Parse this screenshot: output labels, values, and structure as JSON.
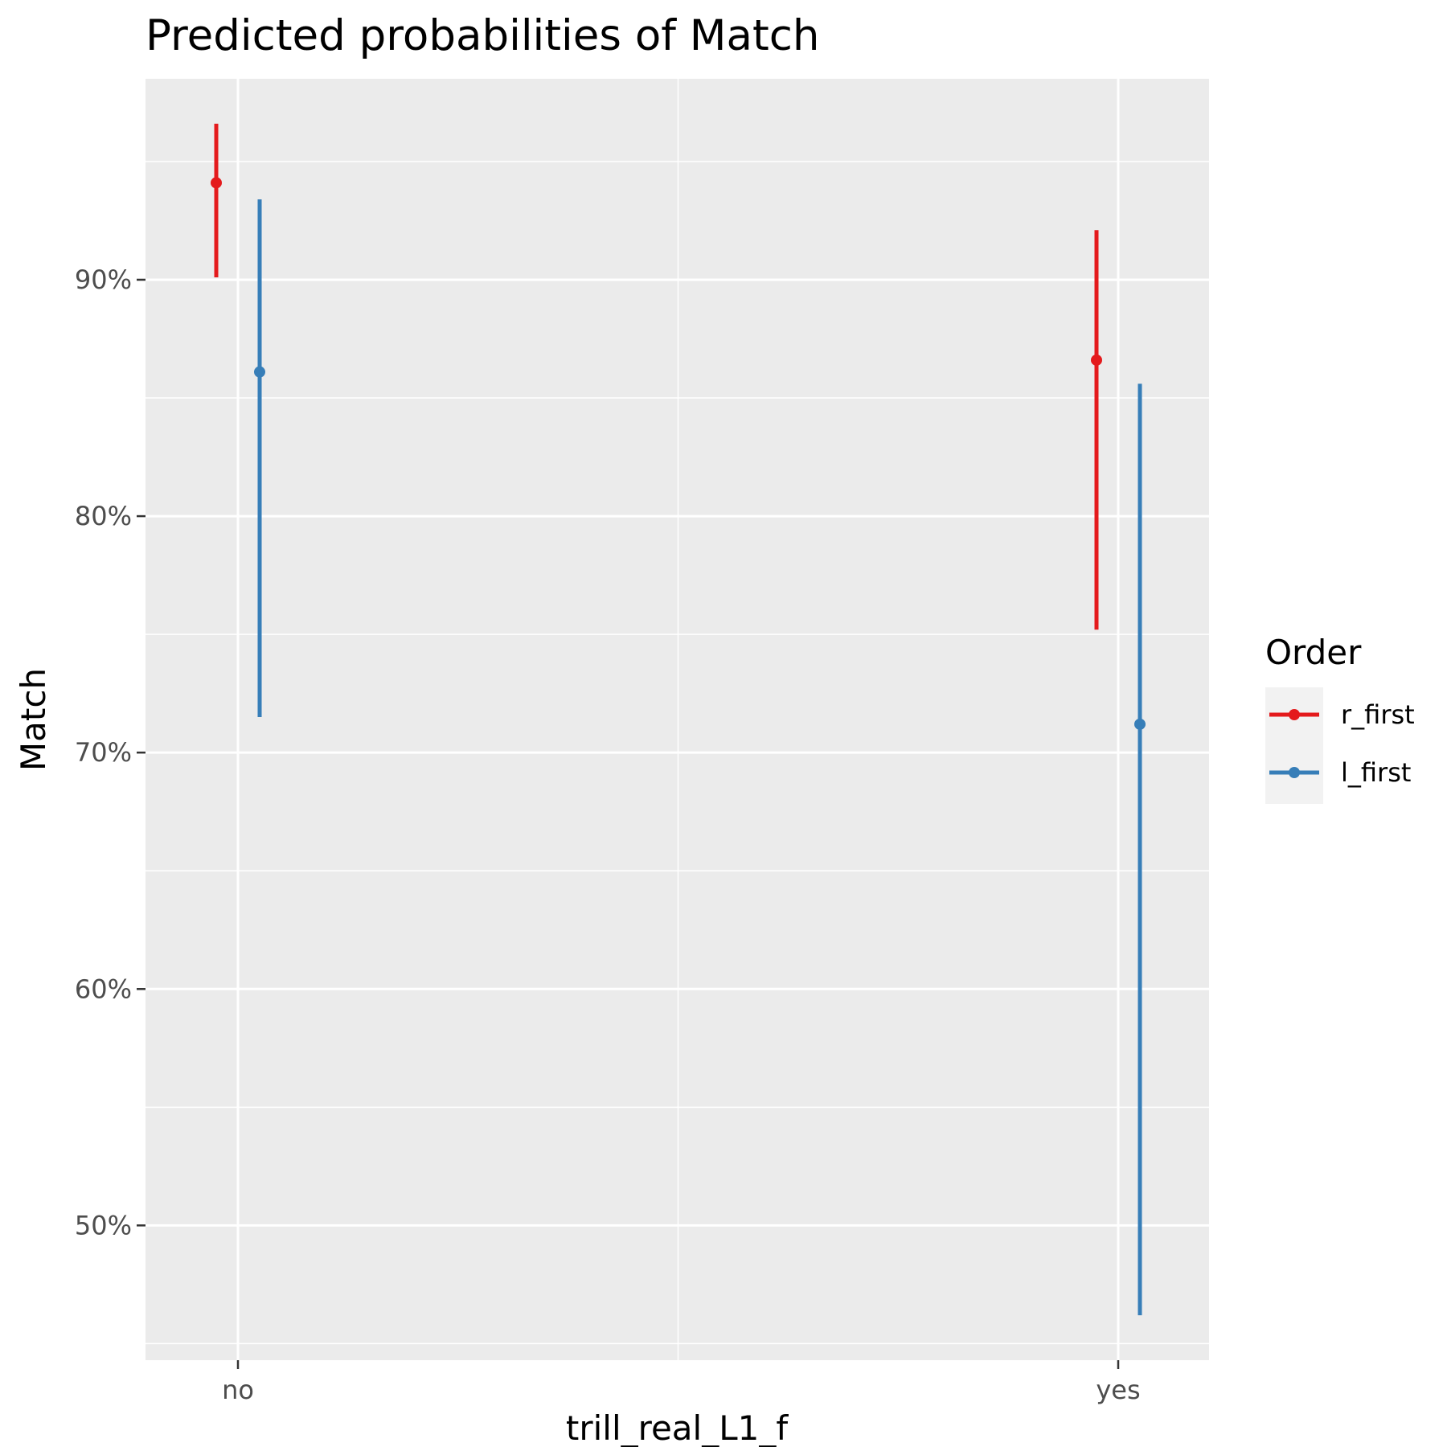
{
  "chart_data": {
    "type": "errorbar",
    "title": "Predicted probabilities of Match",
    "xlabel": "trill_real_L1_f",
    "ylabel": "Match",
    "categories": [
      "no",
      "yes"
    ],
    "ylim": [
      0.443,
      0.985
    ],
    "yticks": [
      0.5,
      0.6,
      0.7,
      0.8,
      0.9
    ],
    "ytick_labels": [
      "50%",
      "60%",
      "70%",
      "80%",
      "90%"
    ],
    "grid": true,
    "legend": {
      "title": "Order",
      "position": "right"
    },
    "series": [
      {
        "name": "r_first",
        "color": "#e41a1c",
        "values": [
          0.941,
          0.866
        ],
        "lower": [
          0.901,
          0.752
        ],
        "upper": [
          0.966,
          0.921
        ]
      },
      {
        "name": "l_first",
        "color": "#377eb8",
        "values": [
          0.861,
          0.712
        ],
        "lower": [
          0.715,
          0.462
        ],
        "upper": [
          0.934,
          0.856
        ]
      }
    ]
  }
}
